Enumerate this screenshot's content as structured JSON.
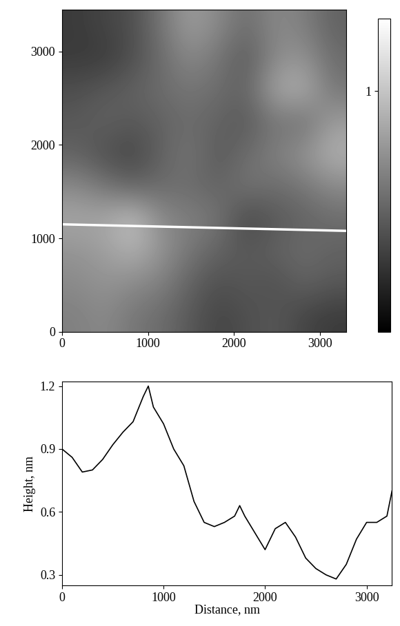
{
  "chart_data": [
    {
      "type": "heatmap",
      "xlim": [
        0,
        3300
      ],
      "ylim": [
        0,
        3450
      ],
      "xticks": [
        0,
        1000,
        2000,
        3000
      ],
      "yticks": [
        0,
        1000,
        2000,
        3000
      ],
      "cells": [
        [
          0.3,
          0.35,
          0.4,
          0.6,
          0.8,
          0.7,
          0.55,
          0.7,
          0.65,
          0.5
        ],
        [
          0.3,
          0.3,
          0.4,
          0.55,
          0.7,
          0.6,
          0.45,
          0.7,
          0.75,
          0.55
        ],
        [
          0.4,
          0.45,
          0.5,
          0.55,
          0.6,
          0.55,
          0.5,
          0.85,
          0.9,
          0.6
        ],
        [
          0.45,
          0.5,
          0.45,
          0.5,
          0.55,
          0.5,
          0.45,
          0.6,
          0.55,
          0.8
        ],
        [
          0.5,
          0.4,
          0.35,
          0.5,
          0.6,
          0.45,
          0.55,
          0.65,
          0.75,
          0.9
        ],
        [
          0.7,
          0.6,
          0.5,
          0.55,
          0.55,
          0.5,
          0.6,
          0.55,
          0.6,
          0.7
        ],
        [
          0.85,
          0.85,
          1.0,
          0.7,
          0.65,
          0.6,
          0.35,
          0.45,
          0.5,
          0.55
        ],
        [
          0.75,
          0.8,
          0.9,
          0.75,
          0.6,
          0.5,
          0.45,
          0.5,
          0.55,
          0.5
        ],
        [
          0.7,
          0.75,
          0.7,
          0.65,
          0.5,
          0.4,
          0.45,
          0.4,
          0.5,
          0.45
        ],
        [
          0.65,
          0.7,
          0.6,
          0.55,
          0.45,
          0.35,
          0.4,
          0.45,
          0.35,
          0.3
        ]
      ],
      "colorbar_lim": [
        0,
        1.3
      ],
      "colorbar_ticks": [
        1
      ],
      "series": [
        {
          "type": "line",
          "color": "#ffffff",
          "x": [
            0,
            3300
          ],
          "y": [
            1150,
            1080
          ]
        }
      ]
    },
    {
      "type": "line",
      "xlabel": "Distance, nm",
      "ylabel": "Height, nm",
      "xlim": [
        0,
        3250
      ],
      "ylim": [
        0.25,
        1.22
      ],
      "xticks": [
        0,
        1000,
        2000,
        3000
      ],
      "yticks": [
        0.3,
        0.6,
        0.9,
        1.2
      ],
      "color": "#000000",
      "x": [
        0,
        100,
        200,
        300,
        400,
        500,
        600,
        700,
        800,
        850,
        900,
        1000,
        1100,
        1200,
        1300,
        1400,
        1500,
        1600,
        1700,
        1750,
        1800,
        1900,
        2000,
        2100,
        2200,
        2300,
        2400,
        2500,
        2600,
        2700,
        2800,
        2900,
        3000,
        3100,
        3200,
        3250
      ],
      "values": [
        0.9,
        0.86,
        0.79,
        0.8,
        0.85,
        0.92,
        0.98,
        1.03,
        1.15,
        1.2,
        1.1,
        1.02,
        0.9,
        0.82,
        0.65,
        0.55,
        0.53,
        0.55,
        0.58,
        0.63,
        0.58,
        0.5,
        0.42,
        0.52,
        0.55,
        0.48,
        0.38,
        0.33,
        0.3,
        0.28,
        0.35,
        0.47,
        0.55,
        0.55,
        0.58,
        0.7
      ]
    }
  ]
}
